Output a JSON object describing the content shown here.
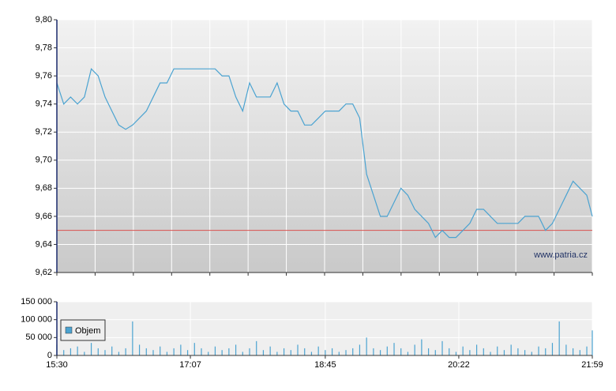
{
  "chart_data": [
    {
      "type": "line",
      "watermark": "www.patria.cz",
      "xlim": [
        "15:30",
        "21:59"
      ],
      "ylim": [
        9.62,
        9.8
      ],
      "yticks": [
        {
          "value": 9.62,
          "label": "9,62"
        },
        {
          "value": 9.64,
          "label": "9,64"
        },
        {
          "value": 9.66,
          "label": "9,66"
        },
        {
          "value": 9.68,
          "label": "9,68"
        },
        {
          "value": 9.7,
          "label": "9,70"
        },
        {
          "value": 9.72,
          "label": "9,72"
        },
        {
          "value": 9.74,
          "label": "9,74"
        },
        {
          "value": 9.76,
          "label": "9,76"
        },
        {
          "value": 9.78,
          "label": "9,78"
        },
        {
          "value": 9.8,
          "label": "9,80"
        }
      ],
      "reference_line": 9.65,
      "reference_color": "#d9534f",
      "grid": true,
      "x": [
        "15:30",
        "15:35",
        "15:40",
        "15:45",
        "15:50",
        "15:55",
        "16:00",
        "16:05",
        "16:10",
        "16:15",
        "16:20",
        "16:25",
        "16:30",
        "16:35",
        "16:40",
        "16:45",
        "16:50",
        "16:55",
        "17:00",
        "17:05",
        "17:10",
        "17:15",
        "17:20",
        "17:25",
        "17:30",
        "17:35",
        "17:40",
        "17:45",
        "17:50",
        "17:55",
        "18:00",
        "18:05",
        "18:10",
        "18:15",
        "18:20",
        "18:25",
        "18:30",
        "18:35",
        "18:40",
        "18:45",
        "18:50",
        "18:55",
        "19:00",
        "19:05",
        "19:10",
        "19:15",
        "19:20",
        "19:25",
        "19:30",
        "19:35",
        "19:40",
        "19:45",
        "19:50",
        "19:55",
        "20:00",
        "20:05",
        "20:10",
        "20:15",
        "20:20",
        "20:25",
        "20:30",
        "20:35",
        "20:40",
        "20:45",
        "20:50",
        "20:55",
        "21:00",
        "21:05",
        "21:10",
        "21:15",
        "21:20",
        "21:25",
        "21:30",
        "21:35",
        "21:40",
        "21:45",
        "21:50",
        "21:55",
        "21:59"
      ],
      "series": [
        {
          "color": "#4ba3d1",
          "values": [
            9.755,
            9.74,
            9.745,
            9.74,
            9.745,
            9.765,
            9.76,
            9.745,
            9.735,
            9.725,
            9.722,
            9.725,
            9.73,
            9.735,
            9.745,
            9.755,
            9.755,
            9.765,
            9.765,
            9.765,
            9.765,
            9.765,
            9.765,
            9.765,
            9.76,
            9.76,
            9.745,
            9.735,
            9.755,
            9.745,
            9.745,
            9.745,
            9.755,
            9.74,
            9.735,
            9.735,
            9.725,
            9.725,
            9.73,
            9.735,
            9.735,
            9.735,
            9.74,
            9.74,
            9.73,
            9.69,
            9.675,
            9.66,
            9.66,
            9.67,
            9.68,
            9.675,
            9.665,
            9.66,
            9.655,
            9.645,
            9.65,
            9.645,
            9.645,
            9.65,
            9.655,
            9.665,
            9.665,
            9.66,
            9.655,
            9.655,
            9.655,
            9.655,
            9.66,
            9.66,
            9.66,
            9.65,
            9.655,
            9.665,
            9.675,
            9.685,
            9.68,
            9.675,
            9.66
          ]
        }
      ]
    },
    {
      "type": "bar",
      "xlim": [
        "15:30",
        "21:59"
      ],
      "xticks": [
        "15:30",
        "17:07",
        "18:45",
        "20:22",
        "21:59"
      ],
      "ylim": [
        0,
        150000
      ],
      "yticks": [
        {
          "value": 0,
          "label": "0"
        },
        {
          "value": 50000,
          "label": "50 000"
        },
        {
          "value": 100000,
          "label": "100 000"
        },
        {
          "value": 150000,
          "label": "150 000"
        }
      ],
      "legend": "top-left",
      "x": [
        "15:30",
        "15:35",
        "15:40",
        "15:45",
        "15:50",
        "15:55",
        "16:00",
        "16:05",
        "16:10",
        "16:15",
        "16:20",
        "16:25",
        "16:30",
        "16:35",
        "16:40",
        "16:45",
        "16:50",
        "16:55",
        "17:00",
        "17:05",
        "17:10",
        "17:15",
        "17:20",
        "17:25",
        "17:30",
        "17:35",
        "17:40",
        "17:45",
        "17:50",
        "17:55",
        "18:00",
        "18:05",
        "18:10",
        "18:15",
        "18:20",
        "18:25",
        "18:30",
        "18:35",
        "18:40",
        "18:45",
        "18:50",
        "18:55",
        "19:00",
        "19:05",
        "19:10",
        "19:15",
        "19:20",
        "19:25",
        "19:30",
        "19:35",
        "19:40",
        "19:45",
        "19:50",
        "19:55",
        "20:00",
        "20:05",
        "20:10",
        "20:15",
        "20:20",
        "20:25",
        "20:30",
        "20:35",
        "20:40",
        "20:45",
        "20:50",
        "20:55",
        "21:00",
        "21:05",
        "21:10",
        "21:15",
        "21:20",
        "21:25",
        "21:30",
        "21:35",
        "21:40",
        "21:45",
        "21:50",
        "21:55",
        "21:59"
      ],
      "series": [
        {
          "name": "Objem",
          "color": "#4ba3d1",
          "values": [
            30000,
            15000,
            20000,
            25000,
            10000,
            35000,
            20000,
            15000,
            25000,
            10000,
            20000,
            95000,
            30000,
            20000,
            15000,
            25000,
            10000,
            20000,
            30000,
            15000,
            35000,
            20000,
            10000,
            25000,
            15000,
            20000,
            30000,
            10000,
            20000,
            40000,
            15000,
            25000,
            10000,
            20000,
            15000,
            30000,
            20000,
            10000,
            25000,
            15000,
            20000,
            10000,
            15000,
            20000,
            30000,
            50000,
            20000,
            15000,
            25000,
            35000,
            20000,
            10000,
            30000,
            45000,
            20000,
            15000,
            40000,
            20000,
            10000,
            25000,
            15000,
            30000,
            20000,
            10000,
            25000,
            15000,
            30000,
            20000,
            15000,
            10000,
            25000,
            20000,
            35000,
            95000,
            30000,
            20000,
            15000,
            25000,
            70000
          ]
        }
      ]
    }
  ]
}
